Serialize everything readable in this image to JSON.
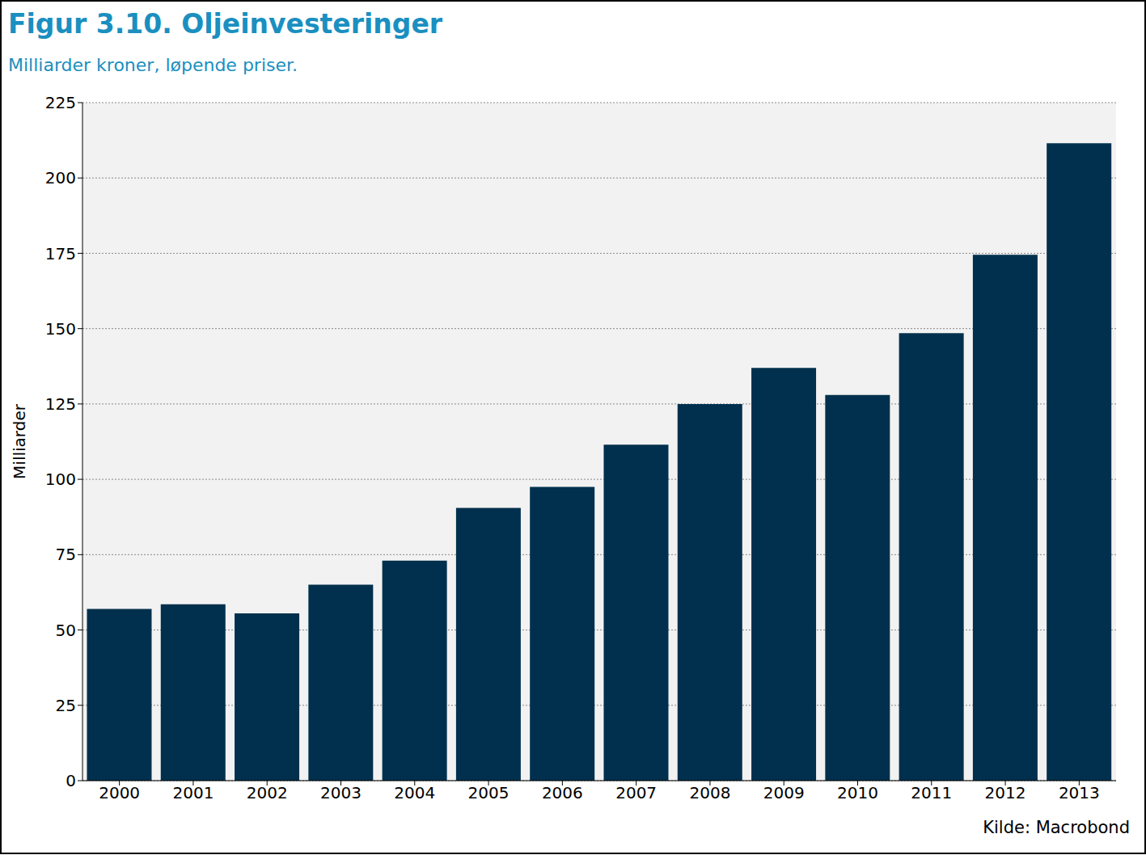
{
  "chart_data": {
    "type": "bar",
    "title": "Figur 3.10. Oljeinvesteringer",
    "subtitle": "Milliarder kroner, løpende priser.",
    "y_label": "Milliarder",
    "source": "Kilde: Macrobond",
    "categories": [
      "2000",
      "2001",
      "2002",
      "2003",
      "2004",
      "2005",
      "2006",
      "2007",
      "2008",
      "2009",
      "2010",
      "2011",
      "2012",
      "2013"
    ],
    "values": [
      57,
      58.5,
      55.5,
      65,
      73,
      90.5,
      97.5,
      111.5,
      125,
      137,
      128,
      148.5,
      174.5,
      211.5
    ],
    "color": "#00304d",
    "ylim": [
      0,
      225
    ],
    "yticks": [
      0,
      25,
      50,
      75,
      100,
      125,
      150,
      175,
      200,
      225
    ],
    "grid": true
  }
}
